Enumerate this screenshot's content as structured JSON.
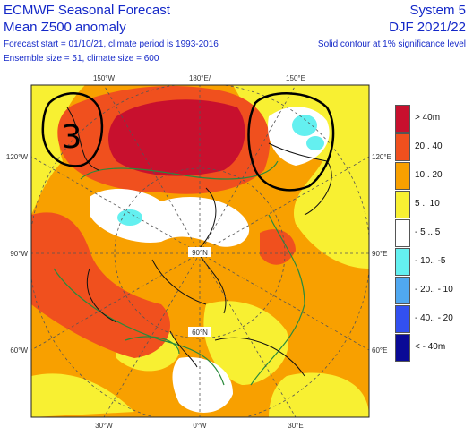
{
  "header": {
    "title_line1": "ECMWF Seasonal Forecast",
    "title_line2": "Mean Z500 anomaly",
    "info_line1": "Forecast start = 01/10/21, climate period is 1993-2016",
    "info_line2": "Ensemble size = 51, climate size = 600",
    "system": "System 5",
    "season": "DJF 2021/22",
    "contour_note": "Solid contour at 1% significance level"
  },
  "map_labels": {
    "lon_150w": "150°W",
    "lon_180": "180°E/",
    "lon_150e": "150°E",
    "lon_120w": "120°W",
    "lon_120e": "120°E",
    "lon_90w": "90°W",
    "lon_90e": "90°E",
    "lon_60w": "60°W",
    "lon_60e": "60°E",
    "lon_30w": "30°W",
    "lon_0": "0°W",
    "lon_30e": "30°E",
    "lat_90n": "90°N",
    "lat_60n": "60°N"
  },
  "annotation": {
    "handwritten_digit": "3"
  },
  "legend": [
    {
      "label": "> 40m",
      "color": "#c8102e"
    },
    {
      "label": "20.. 40",
      "color": "#f0501e"
    },
    {
      "label": "10.. 20",
      "color": "#f8a000"
    },
    {
      "label": "5 .. 10",
      "color": "#f8f032"
    },
    {
      "label": "- 5 .. 5",
      "color": "#ffffff"
    },
    {
      "label": "- 10.. -5",
      "color": "#64f0f0"
    },
    {
      "label": "- 20.. - 10",
      "color": "#50a8f0"
    },
    {
      "label": "- 40.. - 20",
      "color": "#3250f0"
    },
    {
      "label": "< - 40m",
      "color": "#0a0a96"
    }
  ]
}
